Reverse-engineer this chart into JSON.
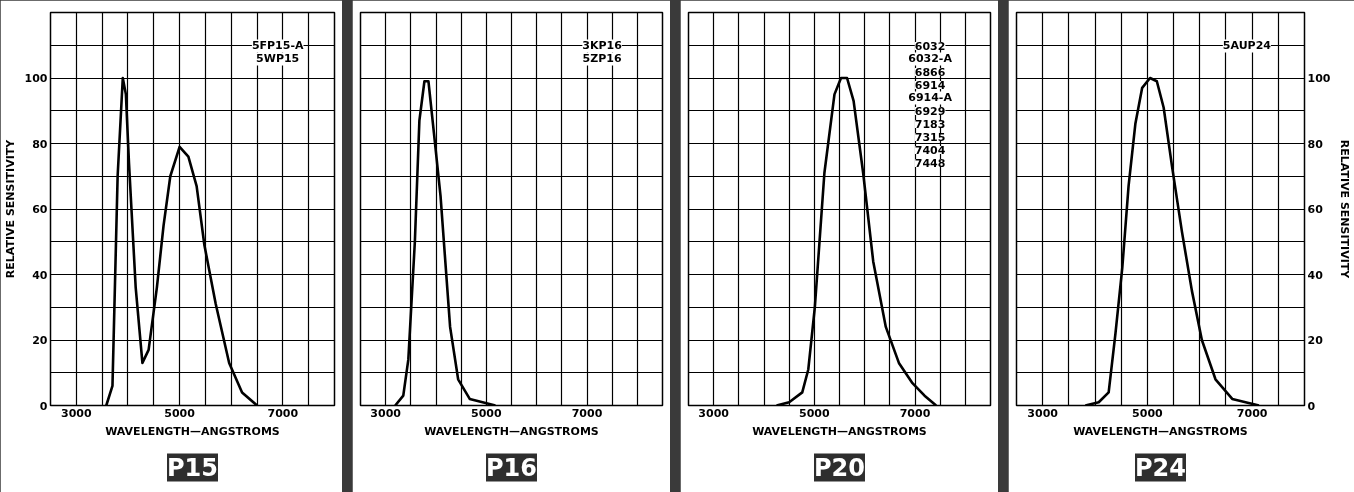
{
  "chart_data": [
    {
      "type": "line",
      "title": "P15",
      "xlabel": "WAVELENGTH—ANGSTROMS",
      "ylabel": "RELATIVE SENSITIVITY",
      "annotations": [
        "5FP15-A",
        "5WP15"
      ],
      "xlim": [
        2500,
        8000
      ],
      "ylim": [
        0,
        120
      ],
      "xticks": [
        {
          "value": 2500,
          "label": null
        },
        3000,
        {
          "value": 3500,
          "label": null
        },
        {
          "value": 4000,
          "label": null
        },
        {
          "value": 4500,
          "label": null
        },
        5000,
        {
          "value": 5500,
          "label": null
        },
        {
          "value": 6000,
          "label": null
        },
        {
          "value": 6500,
          "label": null
        },
        7000,
        {
          "value": 7500,
          "label": null
        },
        {
          "value": 8000,
          "label": null
        }
      ],
      "yticks": [
        0,
        {
          "value": 10,
          "label": null
        },
        20,
        {
          "value": 30,
          "label": null
        },
        40,
        {
          "value": 50,
          "label": null
        },
        60,
        {
          "value": 70,
          "label": null
        },
        80,
        {
          "value": 90,
          "label": null
        },
        100,
        {
          "value": 110,
          "label": null
        },
        {
          "value": 120,
          "label": null
        }
      ],
      "grid": true,
      "line_style": "solid",
      "series": [
        {
          "color": "#000000",
          "x": [
            3580,
            3700,
            3800,
            3900,
            3960,
            4020,
            4150,
            4280,
            4400,
            4560,
            4690,
            4820,
            5000,
            5170,
            5330,
            5480,
            5700,
            5960,
            6210,
            6500
          ],
          "values": [
            0,
            6,
            70,
            100,
            95,
            74,
            36,
            13,
            17,
            36,
            55,
            70,
            79,
            76,
            67,
            49,
            31,
            13,
            4,
            0
          ]
        }
      ]
    },
    {
      "type": "line",
      "title": "P16",
      "xlabel": "WAVELENGTH—ANGSTROMS",
      "annotations": [
        "3KP16",
        "5ZP16"
      ],
      "xlim": [
        2500,
        8500
      ],
      "ylim": [
        0,
        120
      ],
      "tick_labels": "x",
      "xticks": [
        {
          "value": 2500,
          "label": null
        },
        3000,
        {
          "value": 3500,
          "label": null
        },
        {
          "value": 4000,
          "label": null
        },
        {
          "value": 4500,
          "label": null
        },
        5000,
        {
          "value": 5500,
          "label": null
        },
        {
          "value": 6000,
          "label": null
        },
        {
          "value": 6500,
          "label": null
        },
        7000,
        {
          "value": 7500,
          "label": null
        },
        {
          "value": 8000,
          "label": null
        },
        {
          "value": 8500,
          "label": null
        }
      ],
      "yticks": [
        {
          "value": 0,
          "label": null
        },
        {
          "value": 10,
          "label": null
        },
        {
          "value": 20,
          "label": null
        },
        {
          "value": 30,
          "label": null
        },
        {
          "value": 40,
          "label": null
        },
        {
          "value": 50,
          "label": null
        },
        {
          "value": 60,
          "label": null
        },
        {
          "value": 70,
          "label": null
        },
        {
          "value": 80,
          "label": null
        },
        {
          "value": 90,
          "label": null
        },
        {
          "value": 100,
          "label": null
        },
        {
          "value": 110,
          "label": null
        },
        {
          "value": 120,
          "label": null
        }
      ],
      "grid": true,
      "line_style": "solid",
      "series": [
        {
          "color": "#000000",
          "x": [
            3190,
            3350,
            3450,
            3580,
            3670,
            3770,
            3850,
            3960,
            4090,
            4280,
            4440,
            4670,
            5180
          ],
          "values": [
            0,
            3,
            14,
            50,
            87,
            99,
            99,
            83,
            64,
            24,
            8,
            2,
            0
          ]
        }
      ]
    },
    {
      "type": "line",
      "title": "P20",
      "xlabel": "WAVELENGTH—ANGSTROMS",
      "annotations": [
        "6032",
        "6032-A",
        "6866",
        "6914",
        "6914-A",
        "6929",
        "7183",
        "7315",
        "7404",
        "7448"
      ],
      "xlim": [
        2500,
        8500
      ],
      "ylim": [
        0,
        120
      ],
      "tick_labels": "x",
      "xticks": [
        {
          "value": 2500,
          "label": null
        },
        3000,
        {
          "value": 3500,
          "label": null
        },
        {
          "value": 4000,
          "label": null
        },
        {
          "value": 4500,
          "label": null
        },
        5000,
        {
          "value": 5500,
          "label": null
        },
        {
          "value": 6000,
          "label": null
        },
        {
          "value": 6500,
          "label": null
        },
        7000,
        {
          "value": 7500,
          "label": null
        },
        {
          "value": 8000,
          "label": null
        },
        {
          "value": 8500,
          "label": null
        }
      ],
      "yticks": [
        {
          "value": 0,
          "label": null
        },
        {
          "value": 10,
          "label": null
        },
        {
          "value": 20,
          "label": null
        },
        {
          "value": 30,
          "label": null
        },
        {
          "value": 40,
          "label": null
        },
        {
          "value": 50,
          "label": null
        },
        {
          "value": 60,
          "label": null
        },
        {
          "value": 70,
          "label": null
        },
        {
          "value": 80,
          "label": null
        },
        {
          "value": 90,
          "label": null
        },
        {
          "value": 100,
          "label": null
        },
        {
          "value": 110,
          "label": null
        },
        {
          "value": 120,
          "label": null
        }
      ],
      "grid": true,
      "line_style": "solid",
      "series": [
        {
          "color": "#000000",
          "x": [
            4250,
            4500,
            4760,
            4880,
            5010,
            5200,
            5400,
            5530,
            5650,
            5780,
            5970,
            6170,
            6420,
            6680,
            6940,
            7190,
            7420
          ],
          "values": [
            0,
            1,
            4,
            11,
            30,
            71,
            95,
            100,
            100,
            93,
            71,
            44,
            24,
            13,
            7,
            3,
            0
          ]
        }
      ]
    },
    {
      "type": "line",
      "title": "P24",
      "xlabel": "WAVELENGTH—ANGSTROMS",
      "y2label": "RELATIVE SENSITIVITY",
      "annotations": [
        "5AUP24"
      ],
      "xlim": [
        2500,
        8000
      ],
      "y2lim": [
        0,
        120
      ],
      "xticks": [
        {
          "value": 2500,
          "label": null
        },
        3000,
        {
          "value": 3500,
          "label": null
        },
        {
          "value": 4000,
          "label": null
        },
        {
          "value": 4500,
          "label": null
        },
        5000,
        {
          "value": 5500,
          "label": null
        },
        {
          "value": 6000,
          "label": null
        },
        {
          "value": 6500,
          "label": null
        },
        7000,
        {
          "value": 7500,
          "label": null
        },
        {
          "value": 8000,
          "label": null
        }
      ],
      "y2ticks": [
        0,
        {
          "value": 10,
          "label": null
        },
        20,
        {
          "value": 30,
          "label": null
        },
        40,
        {
          "value": 50,
          "label": null
        },
        60,
        {
          "value": 70,
          "label": null
        },
        80,
        {
          "value": 90,
          "label": null
        },
        100,
        {
          "value": 110,
          "label": null
        },
        {
          "value": 120,
          "label": null
        }
      ],
      "grid": true,
      "line_style": "solid",
      "series": [
        {
          "color": "#000000",
          "axis": "y2",
          "x": [
            3815,
            4070,
            4260,
            4390,
            4520,
            4640,
            4770,
            4900,
            5050,
            5180,
            5310,
            5470,
            5660,
            5850,
            6040,
            6300,
            6620,
            7130
          ],
          "values": [
            0,
            1,
            4,
            22,
            42,
            67,
            86,
            97,
            100,
            99,
            91,
            73,
            53,
            35,
            20,
            8,
            2,
            0
          ]
        }
      ]
    }
  ]
}
